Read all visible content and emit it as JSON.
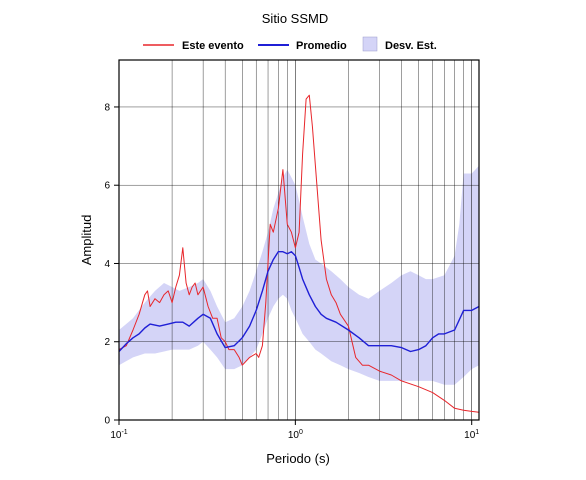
{
  "chart_data": {
    "type": "line",
    "title": "Sitio SSMD",
    "xlabel": "Periodo (s)",
    "ylabel": "Amplitud",
    "x_scale": "log",
    "xlim": [
      0.1,
      11
    ],
    "ylim": [
      0,
      9.2
    ],
    "grid": true,
    "legend_position": "top",
    "x_ticks": [
      {
        "value": 0.1,
        "label_base": "10",
        "label_exp": "-1"
      },
      {
        "value": 1,
        "label_base": "10",
        "label_exp": "0"
      },
      {
        "value": 10,
        "label_base": "10",
        "label_exp": "1"
      }
    ],
    "y_ticks": [
      0,
      2,
      4,
      6,
      8
    ],
    "y_tick_labels": [
      "0",
      "2",
      "4",
      "6",
      "8"
    ],
    "colors": {
      "event": "#e8262b",
      "mean": "#1f1fd6",
      "band": "#d4d4f7"
    },
    "legend": [
      {
        "label": "Este evento",
        "kind": "line",
        "color": "#e8262b"
      },
      {
        "label": "Promedio",
        "kind": "line",
        "color": "#1f1fd6"
      },
      {
        "label": "Desv. Est.",
        "kind": "box",
        "color": "#d4d4f7"
      }
    ],
    "series": [
      {
        "name": "Este evento",
        "color": "#e8262b",
        "points": [
          [
            0.1,
            1.8
          ],
          [
            0.11,
            1.9
          ],
          [
            0.12,
            2.3
          ],
          [
            0.13,
            2.7
          ],
          [
            0.14,
            3.2
          ],
          [
            0.145,
            3.3
          ],
          [
            0.15,
            2.9
          ],
          [
            0.16,
            3.1
          ],
          [
            0.17,
            3.0
          ],
          [
            0.18,
            3.2
          ],
          [
            0.19,
            3.3
          ],
          [
            0.2,
            3.0
          ],
          [
            0.21,
            3.4
          ],
          [
            0.22,
            3.7
          ],
          [
            0.23,
            4.4
          ],
          [
            0.24,
            3.5
          ],
          [
            0.25,
            3.2
          ],
          [
            0.26,
            3.4
          ],
          [
            0.27,
            3.5
          ],
          [
            0.28,
            3.2
          ],
          [
            0.3,
            3.4
          ],
          [
            0.32,
            2.9
          ],
          [
            0.34,
            2.6
          ],
          [
            0.36,
            2.6
          ],
          [
            0.38,
            2.1
          ],
          [
            0.4,
            2.0
          ],
          [
            0.42,
            1.8
          ],
          [
            0.45,
            1.8
          ],
          [
            0.48,
            1.6
          ],
          [
            0.5,
            1.4
          ],
          [
            0.55,
            1.6
          ],
          [
            0.6,
            1.7
          ],
          [
            0.62,
            1.6
          ],
          [
            0.65,
            1.9
          ],
          [
            0.68,
            3.0
          ],
          [
            0.72,
            5.0
          ],
          [
            0.75,
            4.8
          ],
          [
            0.8,
            5.4
          ],
          [
            0.85,
            6.4
          ],
          [
            0.9,
            5.0
          ],
          [
            0.95,
            4.8
          ],
          [
            1.0,
            4.4
          ],
          [
            1.05,
            4.8
          ],
          [
            1.1,
            6.8
          ],
          [
            1.15,
            8.2
          ],
          [
            1.2,
            8.3
          ],
          [
            1.25,
            7.5
          ],
          [
            1.3,
            6.5
          ],
          [
            1.4,
            4.6
          ],
          [
            1.5,
            3.6
          ],
          [
            1.6,
            3.2
          ],
          [
            1.7,
            3.0
          ],
          [
            1.8,
            2.7
          ],
          [
            2.0,
            2.4
          ],
          [
            2.2,
            1.6
          ],
          [
            2.4,
            1.4
          ],
          [
            2.6,
            1.4
          ],
          [
            3.0,
            1.25
          ],
          [
            3.5,
            1.15
          ],
          [
            4.0,
            1.0
          ],
          [
            5.0,
            0.85
          ],
          [
            6.0,
            0.7
          ],
          [
            7.0,
            0.5
          ],
          [
            8.0,
            0.3
          ],
          [
            9.0,
            0.25
          ],
          [
            10.0,
            0.22
          ],
          [
            11.0,
            0.2
          ]
        ]
      },
      {
        "name": "Promedio",
        "color": "#1f1fd6",
        "points": [
          [
            0.1,
            1.75
          ],
          [
            0.11,
            1.95
          ],
          [
            0.12,
            2.1
          ],
          [
            0.13,
            2.2
          ],
          [
            0.14,
            2.35
          ],
          [
            0.15,
            2.45
          ],
          [
            0.17,
            2.4
          ],
          [
            0.19,
            2.45
          ],
          [
            0.21,
            2.5
          ],
          [
            0.23,
            2.5
          ],
          [
            0.25,
            2.4
          ],
          [
            0.28,
            2.6
          ],
          [
            0.3,
            2.7
          ],
          [
            0.33,
            2.6
          ],
          [
            0.36,
            2.2
          ],
          [
            0.4,
            1.85
          ],
          [
            0.45,
            1.9
          ],
          [
            0.5,
            2.1
          ],
          [
            0.55,
            2.4
          ],
          [
            0.6,
            2.8
          ],
          [
            0.65,
            3.3
          ],
          [
            0.7,
            3.8
          ],
          [
            0.75,
            4.1
          ],
          [
            0.8,
            4.3
          ],
          [
            0.85,
            4.3
          ],
          [
            0.9,
            4.25
          ],
          [
            0.95,
            4.3
          ],
          [
            1.0,
            4.2
          ],
          [
            1.05,
            3.9
          ],
          [
            1.1,
            3.6
          ],
          [
            1.2,
            3.2
          ],
          [
            1.3,
            2.9
          ],
          [
            1.4,
            2.7
          ],
          [
            1.5,
            2.6
          ],
          [
            1.7,
            2.5
          ],
          [
            2.0,
            2.3
          ],
          [
            2.3,
            2.1
          ],
          [
            2.6,
            1.9
          ],
          [
            3.0,
            1.9
          ],
          [
            3.5,
            1.9
          ],
          [
            4.0,
            1.85
          ],
          [
            4.5,
            1.75
          ],
          [
            5.0,
            1.8
          ],
          [
            5.5,
            1.9
          ],
          [
            6.0,
            2.1
          ],
          [
            6.5,
            2.2
          ],
          [
            7.0,
            2.2
          ],
          [
            8.0,
            2.3
          ],
          [
            9.0,
            2.8
          ],
          [
            10.0,
            2.8
          ],
          [
            11.0,
            2.9
          ]
        ]
      }
    ],
    "band": {
      "name": "Desv. Est.",
      "color": "#d4d4f7",
      "upper": [
        [
          0.1,
          2.3
        ],
        [
          0.12,
          2.6
        ],
        [
          0.14,
          3.0
        ],
        [
          0.16,
          3.3
        ],
        [
          0.18,
          3.5
        ],
        [
          0.2,
          3.4
        ],
        [
          0.22,
          3.3
        ],
        [
          0.25,
          3.4
        ],
        [
          0.28,
          3.5
        ],
        [
          0.3,
          3.6
        ],
        [
          0.33,
          3.3
        ],
        [
          0.36,
          2.9
        ],
        [
          0.4,
          2.5
        ],
        [
          0.45,
          2.6
        ],
        [
          0.5,
          2.9
        ],
        [
          0.55,
          3.3
        ],
        [
          0.6,
          3.8
        ],
        [
          0.65,
          4.3
        ],
        [
          0.7,
          4.8
        ],
        [
          0.75,
          5.4
        ],
        [
          0.8,
          5.8
        ],
        [
          0.85,
          6.2
        ],
        [
          0.9,
          6.4
        ],
        [
          0.95,
          6.2
        ],
        [
          1.0,
          6.0
        ],
        [
          1.05,
          5.6
        ],
        [
          1.1,
          5.2
        ],
        [
          1.2,
          4.5
        ],
        [
          1.3,
          4.1
        ],
        [
          1.4,
          4.0
        ],
        [
          1.6,
          3.8
        ],
        [
          1.8,
          3.6
        ],
        [
          2.0,
          3.4
        ],
        [
          2.3,
          3.2
        ],
        [
          2.6,
          3.1
        ],
        [
          3.0,
          3.3
        ],
        [
          3.5,
          3.5
        ],
        [
          4.0,
          3.7
        ],
        [
          4.5,
          3.8
        ],
        [
          5.0,
          3.7
        ],
        [
          5.5,
          3.6
        ],
        [
          6.0,
          3.6
        ],
        [
          7.0,
          3.7
        ],
        [
          8.0,
          4.2
        ],
        [
          8.5,
          5.0
        ],
        [
          9.0,
          6.3
        ],
        [
          10.0,
          6.3
        ],
        [
          11.0,
          6.5
        ]
      ],
      "lower": [
        [
          0.1,
          1.4
        ],
        [
          0.12,
          1.6
        ],
        [
          0.14,
          1.7
        ],
        [
          0.16,
          1.7
        ],
        [
          0.18,
          1.75
        ],
        [
          0.2,
          1.8
        ],
        [
          0.22,
          1.8
        ],
        [
          0.25,
          1.8
        ],
        [
          0.28,
          1.9
        ],
        [
          0.3,
          2.0
        ],
        [
          0.33,
          1.8
        ],
        [
          0.36,
          1.6
        ],
        [
          0.4,
          1.3
        ],
        [
          0.45,
          1.3
        ],
        [
          0.5,
          1.4
        ],
        [
          0.55,
          1.6
        ],
        [
          0.6,
          1.8
        ],
        [
          0.65,
          2.2
        ],
        [
          0.7,
          2.6
        ],
        [
          0.75,
          2.9
        ],
        [
          0.8,
          3.1
        ],
        [
          0.85,
          3.2
        ],
        [
          0.9,
          3.1
        ],
        [
          0.95,
          2.8
        ],
        [
          1.0,
          2.6
        ],
        [
          1.05,
          2.4
        ],
        [
          1.1,
          2.2
        ],
        [
          1.2,
          2.0
        ],
        [
          1.3,
          1.8
        ],
        [
          1.4,
          1.7
        ],
        [
          1.6,
          1.5
        ],
        [
          1.8,
          1.4
        ],
        [
          2.0,
          1.3
        ],
        [
          2.3,
          1.2
        ],
        [
          2.6,
          1.1
        ],
        [
          3.0,
          1.0
        ],
        [
          3.5,
          1.0
        ],
        [
          4.0,
          1.0
        ],
        [
          4.5,
          1.0
        ],
        [
          5.0,
          1.0
        ],
        [
          6.0,
          1.0
        ],
        [
          7.0,
          0.9
        ],
        [
          8.0,
          0.9
        ],
        [
          9.0,
          1.1
        ],
        [
          10.0,
          1.3
        ],
        [
          11.0,
          1.4
        ]
      ]
    }
  }
}
